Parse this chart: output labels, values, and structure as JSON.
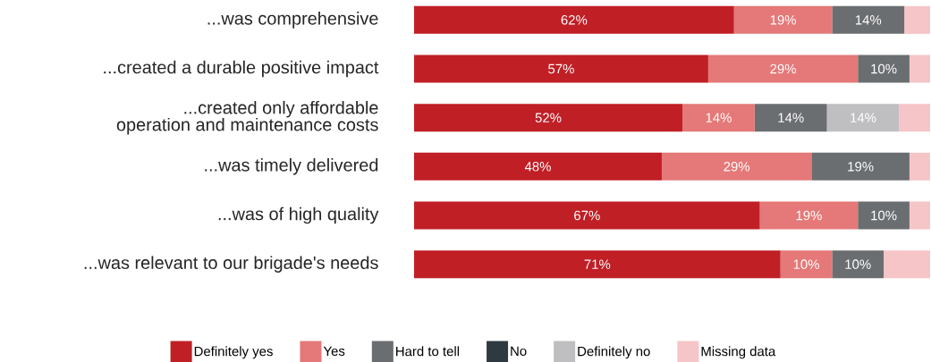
{
  "chart_data": {
    "type": "bar",
    "orientation": "horizontal",
    "stacked": true,
    "legend": "bottom",
    "categories": [
      "...was comprehensive",
      "...created a durable positive impact",
      "...created only affordable operation and maintenance costs",
      "...was timely delivered",
      "...was of high quality",
      "...was relevant to our brigade's needs"
    ],
    "xlim": [
      0,
      100
    ],
    "series": [
      {
        "name": "Definitely yes",
        "color": "#c01f26",
        "values": [
          62,
          57,
          52,
          48,
          67,
          71
        ],
        "value_labels": [
          "62%",
          "57%",
          "52%",
          "48%",
          "67%",
          "71%"
        ]
      },
      {
        "name": "Yes",
        "color": "#e57878",
        "values": [
          19,
          29,
          14,
          29,
          19,
          10
        ],
        "value_labels": [
          "19%",
          "29%",
          "14%",
          "29%",
          "19%",
          "10%"
        ]
      },
      {
        "name": "Hard to tell",
        "color": "#6b6e71",
        "values": [
          14,
          10,
          14,
          19,
          10,
          10
        ],
        "value_labels": [
          "14%",
          "10%",
          "14%",
          "19%",
          "10%",
          "10%"
        ]
      },
      {
        "name": "No",
        "color": "#2e3a40",
        "values": [
          null,
          null,
          null,
          null,
          null,
          null
        ],
        "value_labels": [
          null,
          null,
          null,
          null,
          null,
          null
        ]
      },
      {
        "name": "Definitely no",
        "color": "#bfbfc1",
        "values": [
          0,
          0,
          14,
          0,
          0,
          0
        ],
        "value_labels": [
          null,
          null,
          "14%",
          null,
          null,
          null
        ]
      },
      {
        "name": "Missing data",
        "color": "#f6c5c7",
        "values": [
          5,
          4,
          6,
          4,
          4,
          9
        ],
        "value_labels": [
          null,
          null,
          null,
          null,
          null,
          null
        ]
      }
    ]
  }
}
